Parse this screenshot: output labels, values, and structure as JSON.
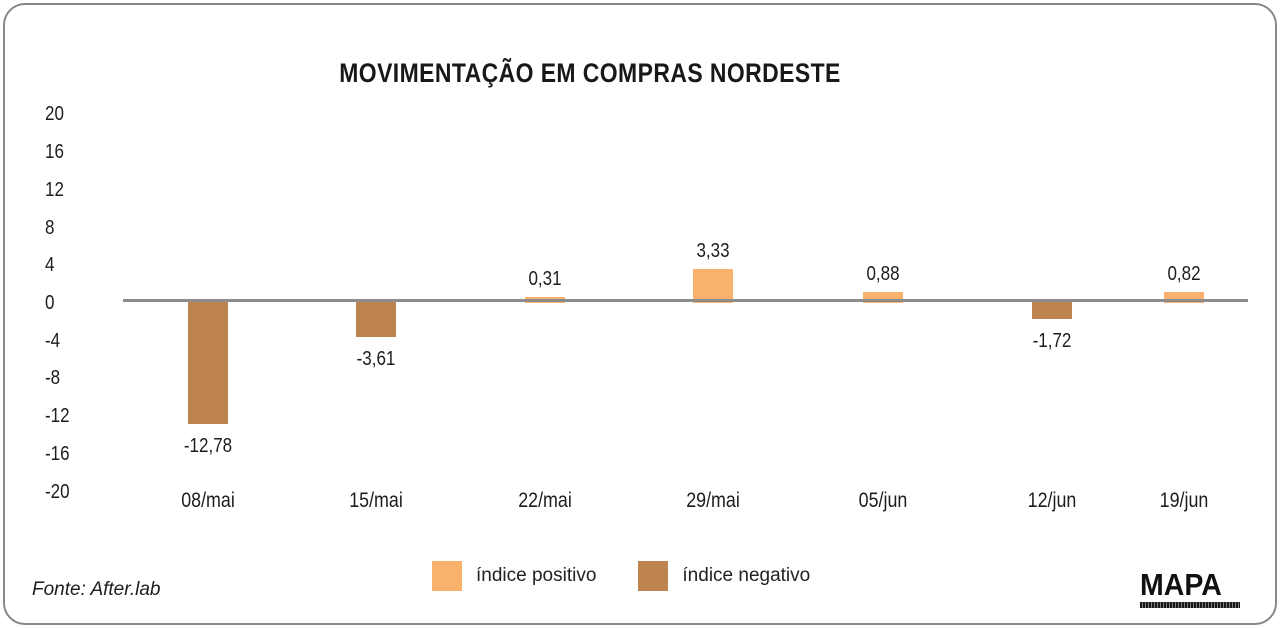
{
  "title": "MOVIMENTAÇÃO EM COMPRAS NORDESTE",
  "legend": {
    "positive_label": "índice positivo",
    "negative_label": "índice negativo"
  },
  "footer": {
    "source": "Fonte: After.lab",
    "logo_text": "MAPA"
  },
  "chart_data": {
    "type": "bar",
    "title": "MOVIMENTAÇÃO EM COMPRAS NORDESTE",
    "categories": [
      "08/mai",
      "15/mai",
      "22/mai",
      "29/mai",
      "05/jun",
      "12/jun",
      "19/jun"
    ],
    "values": [
      -12.78,
      -3.61,
      0.31,
      3.33,
      0.88,
      -1.72,
      0.82
    ],
    "value_labels": [
      "-12,78",
      "-3,61",
      "0,31",
      "3,33",
      "0,88",
      "-1,72",
      "0,82"
    ],
    "yticks": [
      20,
      16,
      12,
      8,
      4,
      0,
      -4,
      -8,
      -12,
      -16,
      -20
    ],
    "ylim": [
      -20,
      20
    ],
    "series": [
      {
        "name": "índice positivo",
        "color": "#F9B26C"
      },
      {
        "name": "índice negativo",
        "color": "#BE8450"
      }
    ],
    "positive_color": "#F9B26C",
    "negative_color": "#BE8450",
    "zero_line_color": "#8C8C8C",
    "grid": false,
    "legend_position": "bottom"
  }
}
